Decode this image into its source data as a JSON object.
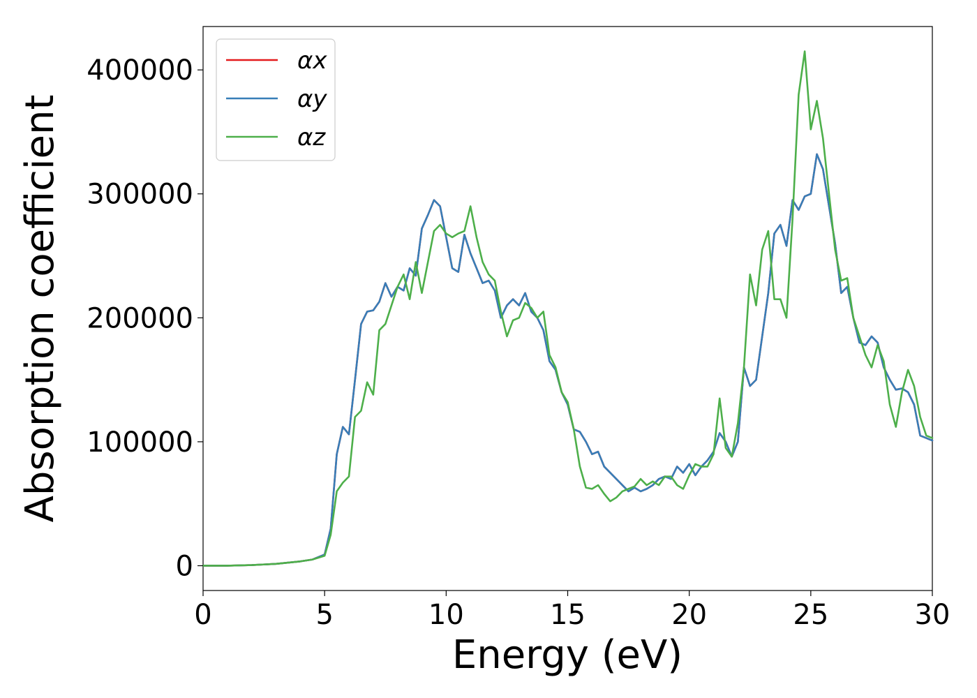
{
  "chart_data": {
    "type": "line",
    "title": "",
    "xlabel": "Energy (eV)",
    "ylabel": "Absorption coefficient",
    "xlim": [
      0,
      30
    ],
    "ylim": [
      -20000,
      435000
    ],
    "xticks": [
      0,
      5,
      10,
      15,
      20,
      25,
      30
    ],
    "xtick_labels": [
      "0",
      "5",
      "10",
      "15",
      "20",
      "25",
      "30"
    ],
    "yticks": [
      0,
      100000,
      200000,
      300000,
      400000
    ],
    "ytick_labels": [
      "0",
      "100000",
      "200000",
      "300000",
      "400000"
    ],
    "grid": false,
    "legend_position": "top-left",
    "x": [
      0,
      1,
      2,
      3,
      4,
      4.5,
      5,
      5.25,
      5.5,
      5.75,
      6,
      6.25,
      6.5,
      6.75,
      7,
      7.25,
      7.5,
      7.75,
      8,
      8.25,
      8.5,
      8.75,
      9,
      9.25,
      9.5,
      9.75,
      10,
      10.25,
      10.5,
      10.75,
      11,
      11.25,
      11.5,
      11.75,
      12,
      12.25,
      12.5,
      12.75,
      13,
      13.25,
      13.5,
      13.75,
      14,
      14.25,
      14.5,
      14.75,
      15,
      15.25,
      15.5,
      15.75,
      16,
      16.25,
      16.5,
      16.75,
      17,
      17.25,
      17.5,
      17.75,
      18,
      18.25,
      18.5,
      18.75,
      19,
      19.25,
      19.5,
      19.75,
      20,
      20.25,
      20.5,
      20.75,
      21,
      21.25,
      21.5,
      21.75,
      22,
      22.25,
      22.5,
      22.75,
      23,
      23.25,
      23.5,
      23.75,
      24,
      24.25,
      24.5,
      24.75,
      25,
      25.25,
      25.5,
      25.75,
      26,
      26.25,
      26.5,
      26.75,
      27,
      27.25,
      27.5,
      27.75,
      28,
      28.25,
      28.5,
      28.75,
      29,
      29.25,
      29.5,
      29.75,
      30
    ],
    "series": [
      {
        "name": "αx",
        "color": "#e41a1c",
        "values": [
          0,
          0,
          500,
          1500,
          3500,
          5000,
          9000,
          30000,
          90000,
          112000,
          106000,
          150000,
          195000,
          205000,
          206000,
          213000,
          228000,
          217000,
          225000,
          222000,
          240000,
          234000,
          272000,
          283000,
          295000,
          290000,
          265000,
          240000,
          237000,
          267000,
          252000,
          240000,
          228000,
          230000,
          222000,
          200000,
          210000,
          215000,
          210000,
          220000,
          205000,
          200000,
          190000,
          165000,
          158000,
          140000,
          130000,
          110000,
          108000,
          100000,
          90000,
          92000,
          80000,
          75000,
          70000,
          65000,
          60000,
          63000,
          60000,
          62000,
          65000,
          70000,
          72000,
          70000,
          80000,
          75000,
          82000,
          73000,
          80000,
          85000,
          92000,
          107000,
          100000,
          88000,
          100000,
          160000,
          145000,
          150000,
          185000,
          220000,
          268000,
          275000,
          258000,
          295000,
          287000,
          298000,
          300000,
          332000,
          320000,
          290000,
          260000,
          220000,
          225000,
          200000,
          180000,
          178000,
          185000,
          180000,
          160000,
          150000,
          142000,
          143000,
          140000,
          130000,
          105000,
          103000,
          101000
        ]
      },
      {
        "name": "αy",
        "color": "#377eb8",
        "values": [
          0,
          0,
          500,
          1500,
          3500,
          5000,
          9000,
          30000,
          90000,
          112000,
          106000,
          150000,
          195000,
          205000,
          206000,
          213000,
          228000,
          217000,
          225000,
          222000,
          240000,
          234000,
          272000,
          283000,
          295000,
          290000,
          265000,
          240000,
          237000,
          267000,
          252000,
          240000,
          228000,
          230000,
          222000,
          200000,
          210000,
          215000,
          210000,
          220000,
          205000,
          200000,
          190000,
          165000,
          158000,
          140000,
          130000,
          110000,
          108000,
          100000,
          90000,
          92000,
          80000,
          75000,
          70000,
          65000,
          60000,
          63000,
          60000,
          62000,
          65000,
          70000,
          72000,
          70000,
          80000,
          75000,
          82000,
          73000,
          80000,
          85000,
          92000,
          107000,
          100000,
          88000,
          100000,
          160000,
          145000,
          150000,
          185000,
          220000,
          268000,
          275000,
          258000,
          295000,
          287000,
          298000,
          300000,
          332000,
          320000,
          290000,
          260000,
          220000,
          225000,
          200000,
          180000,
          178000,
          185000,
          180000,
          160000,
          150000,
          142000,
          143000,
          140000,
          130000,
          105000,
          103000,
          101000
        ]
      },
      {
        "name": "αz",
        "color": "#4daf4a",
        "values": [
          0,
          0,
          500,
          1500,
          3500,
          5000,
          8000,
          25000,
          60000,
          67000,
          72000,
          120000,
          125000,
          148000,
          138000,
          190000,
          195000,
          210000,
          225000,
          235000,
          215000,
          245000,
          220000,
          245000,
          270000,
          275000,
          268000,
          265000,
          268000,
          270000,
          290000,
          265000,
          245000,
          235000,
          230000,
          205000,
          185000,
          198000,
          200000,
          212000,
          208000,
          200000,
          205000,
          170000,
          160000,
          140000,
          132000,
          110000,
          80000,
          63000,
          62000,
          65000,
          58000,
          52000,
          55000,
          60000,
          62000,
          64000,
          70000,
          65000,
          68000,
          65000,
          72000,
          72000,
          65000,
          62000,
          73000,
          82000,
          80000,
          80000,
          90000,
          135000,
          95000,
          88000,
          115000,
          160000,
          235000,
          210000,
          255000,
          270000,
          215000,
          215000,
          200000,
          280000,
          380000,
          415000,
          352000,
          375000,
          345000,
          300000,
          255000,
          230000,
          232000,
          200000,
          185000,
          170000,
          160000,
          178000,
          165000,
          130000,
          112000,
          140000,
          158000,
          145000,
          120000,
          105000,
          103000
        ]
      }
    ]
  }
}
